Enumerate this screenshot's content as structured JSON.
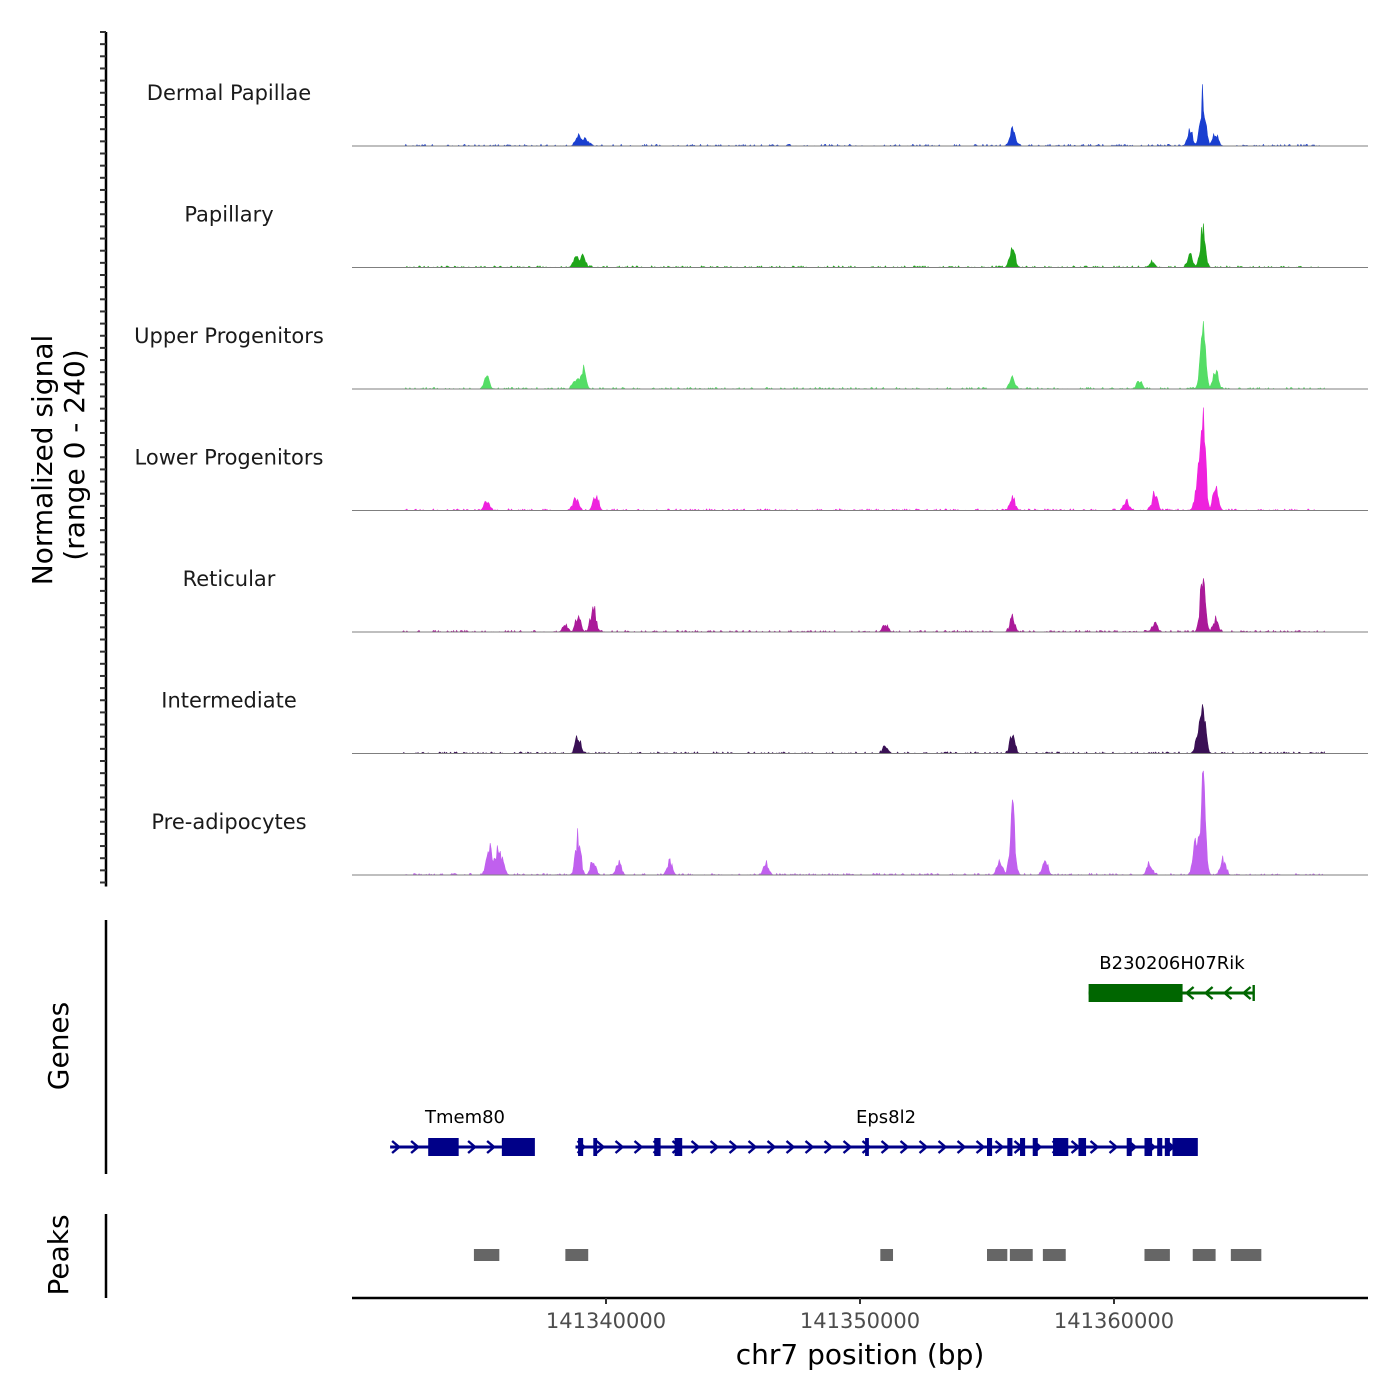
{
  "chart_data": {
    "type": "area",
    "title": "",
    "xlabel": "chr7 position (bp)",
    "ylabel_line1": "Normalized signal",
    "ylabel_line2": "(range 0 - 240)",
    "y_range": [
      0,
      240
    ],
    "x_range": [
      141330000,
      141370000
    ],
    "x_ticks": [
      141340000,
      141350000,
      141360000
    ],
    "x_tick_labels": [
      "141340000",
      "141350000",
      "141360000"
    ],
    "tracks": [
      {
        "name": "Dermal Papillae",
        "color": "#1a3fd0",
        "peaks": [
          [
            141338900,
            30
          ],
          [
            141339200,
            22
          ],
          [
            141356000,
            45
          ],
          [
            141363000,
            40
          ],
          [
            141363500,
            130
          ],
          [
            141364000,
            35
          ]
        ]
      },
      {
        "name": "Papillary",
        "color": "#1fa51a",
        "peaks": [
          [
            141338800,
            25
          ],
          [
            141339100,
            30
          ],
          [
            141356000,
            60
          ],
          [
            141363000,
            30
          ],
          [
            141363500,
            95
          ],
          [
            141361500,
            15
          ]
        ]
      },
      {
        "name": "Upper Progenitors",
        "color": "#55dd66",
        "peaks": [
          [
            141335300,
            30
          ],
          [
            141338800,
            25
          ],
          [
            141339100,
            55
          ],
          [
            141356000,
            30
          ],
          [
            141361000,
            20
          ],
          [
            141363500,
            150
          ],
          [
            141364000,
            45
          ]
        ]
      },
      {
        "name": "Lower Progenitors",
        "color": "#ee22dd",
        "peaks": [
          [
            141335300,
            25
          ],
          [
            141338800,
            35
          ],
          [
            141339600,
            45
          ],
          [
            141356000,
            35
          ],
          [
            141360500,
            25
          ],
          [
            141361600,
            45
          ],
          [
            141363300,
            80
          ],
          [
            141363500,
            240
          ],
          [
            141364000,
            60
          ]
        ]
      },
      {
        "name": "Reticular",
        "color": "#aa1a99",
        "peaks": [
          [
            141338400,
            20
          ],
          [
            141338900,
            40
          ],
          [
            141339500,
            70
          ],
          [
            141351000,
            20
          ],
          [
            141356000,
            35
          ],
          [
            141361600,
            25
          ],
          [
            141363500,
            145
          ],
          [
            141364000,
            35
          ]
        ]
      },
      {
        "name": "Intermediate",
        "color": "#3a1055",
        "peaks": [
          [
            141338900,
            45
          ],
          [
            141351000,
            20
          ],
          [
            141356000,
            50
          ],
          [
            141363500,
            125
          ],
          [
            141363300,
            40
          ]
        ]
      },
      {
        "name": "Pre-adipocytes",
        "color": "#c060ee",
        "peaks": [
          [
            141335400,
            75
          ],
          [
            141335700,
            55
          ],
          [
            141335900,
            40
          ],
          [
            141338900,
            100
          ],
          [
            141339500,
            40
          ],
          [
            141340500,
            30
          ],
          [
            141342500,
            35
          ],
          [
            141346300,
            30
          ],
          [
            141356000,
            160
          ],
          [
            141355500,
            40
          ],
          [
            141357300,
            40
          ],
          [
            141361400,
            30
          ],
          [
            141363500,
            245
          ],
          [
            141363200,
            80
          ],
          [
            141364300,
            40
          ]
        ]
      }
    ],
    "genes_axis_label": "Genes",
    "peaks_axis_label": "Peaks",
    "genes": [
      {
        "name": "B230206H07Rik",
        "color": "#006600",
        "start": 141359000,
        "end": 141365500,
        "strand": "-",
        "row": 1,
        "exons": [
          [
            141359000,
            141362700
          ]
        ]
      },
      {
        "name": "Tmem80",
        "color": "#000088",
        "start": 141331500,
        "end": 141337000,
        "strand": "+",
        "row": 2,
        "exons": [
          [
            141333000,
            141334200
          ],
          [
            141335900,
            141337200
          ]
        ]
      },
      {
        "name": "Eps8l2",
        "color": "#000088",
        "start": 141338800,
        "end": 141362600,
        "strand": "+",
        "row": 2,
        "exons": [
          [
            141338900,
            141339100
          ],
          [
            141339500,
            141339650
          ],
          [
            141341900,
            141342150
          ],
          [
            141342700,
            141343000
          ],
          [
            141350200,
            141350350
          ],
          [
            141355000,
            141355200
          ],
          [
            141355800,
            141356000
          ],
          [
            141356300,
            141356500
          ],
          [
            141356800,
            141357000
          ],
          [
            141357600,
            141358200
          ],
          [
            141358600,
            141358900
          ],
          [
            141360500,
            141360700
          ],
          [
            141361200,
            141361500
          ],
          [
            141361700,
            141361900
          ],
          [
            141362000,
            141362200
          ],
          [
            141362300,
            141363300
          ]
        ]
      }
    ],
    "peak_regions": [
      [
        141334800,
        141335800
      ],
      [
        141338400,
        141339300
      ],
      [
        141350800,
        141351300
      ],
      [
        141355000,
        141355800
      ],
      [
        141355900,
        141356800
      ],
      [
        141357200,
        141358100
      ],
      [
        141361200,
        141362200
      ],
      [
        141363100,
        141364000
      ],
      [
        141364600,
        141365800
      ]
    ]
  }
}
